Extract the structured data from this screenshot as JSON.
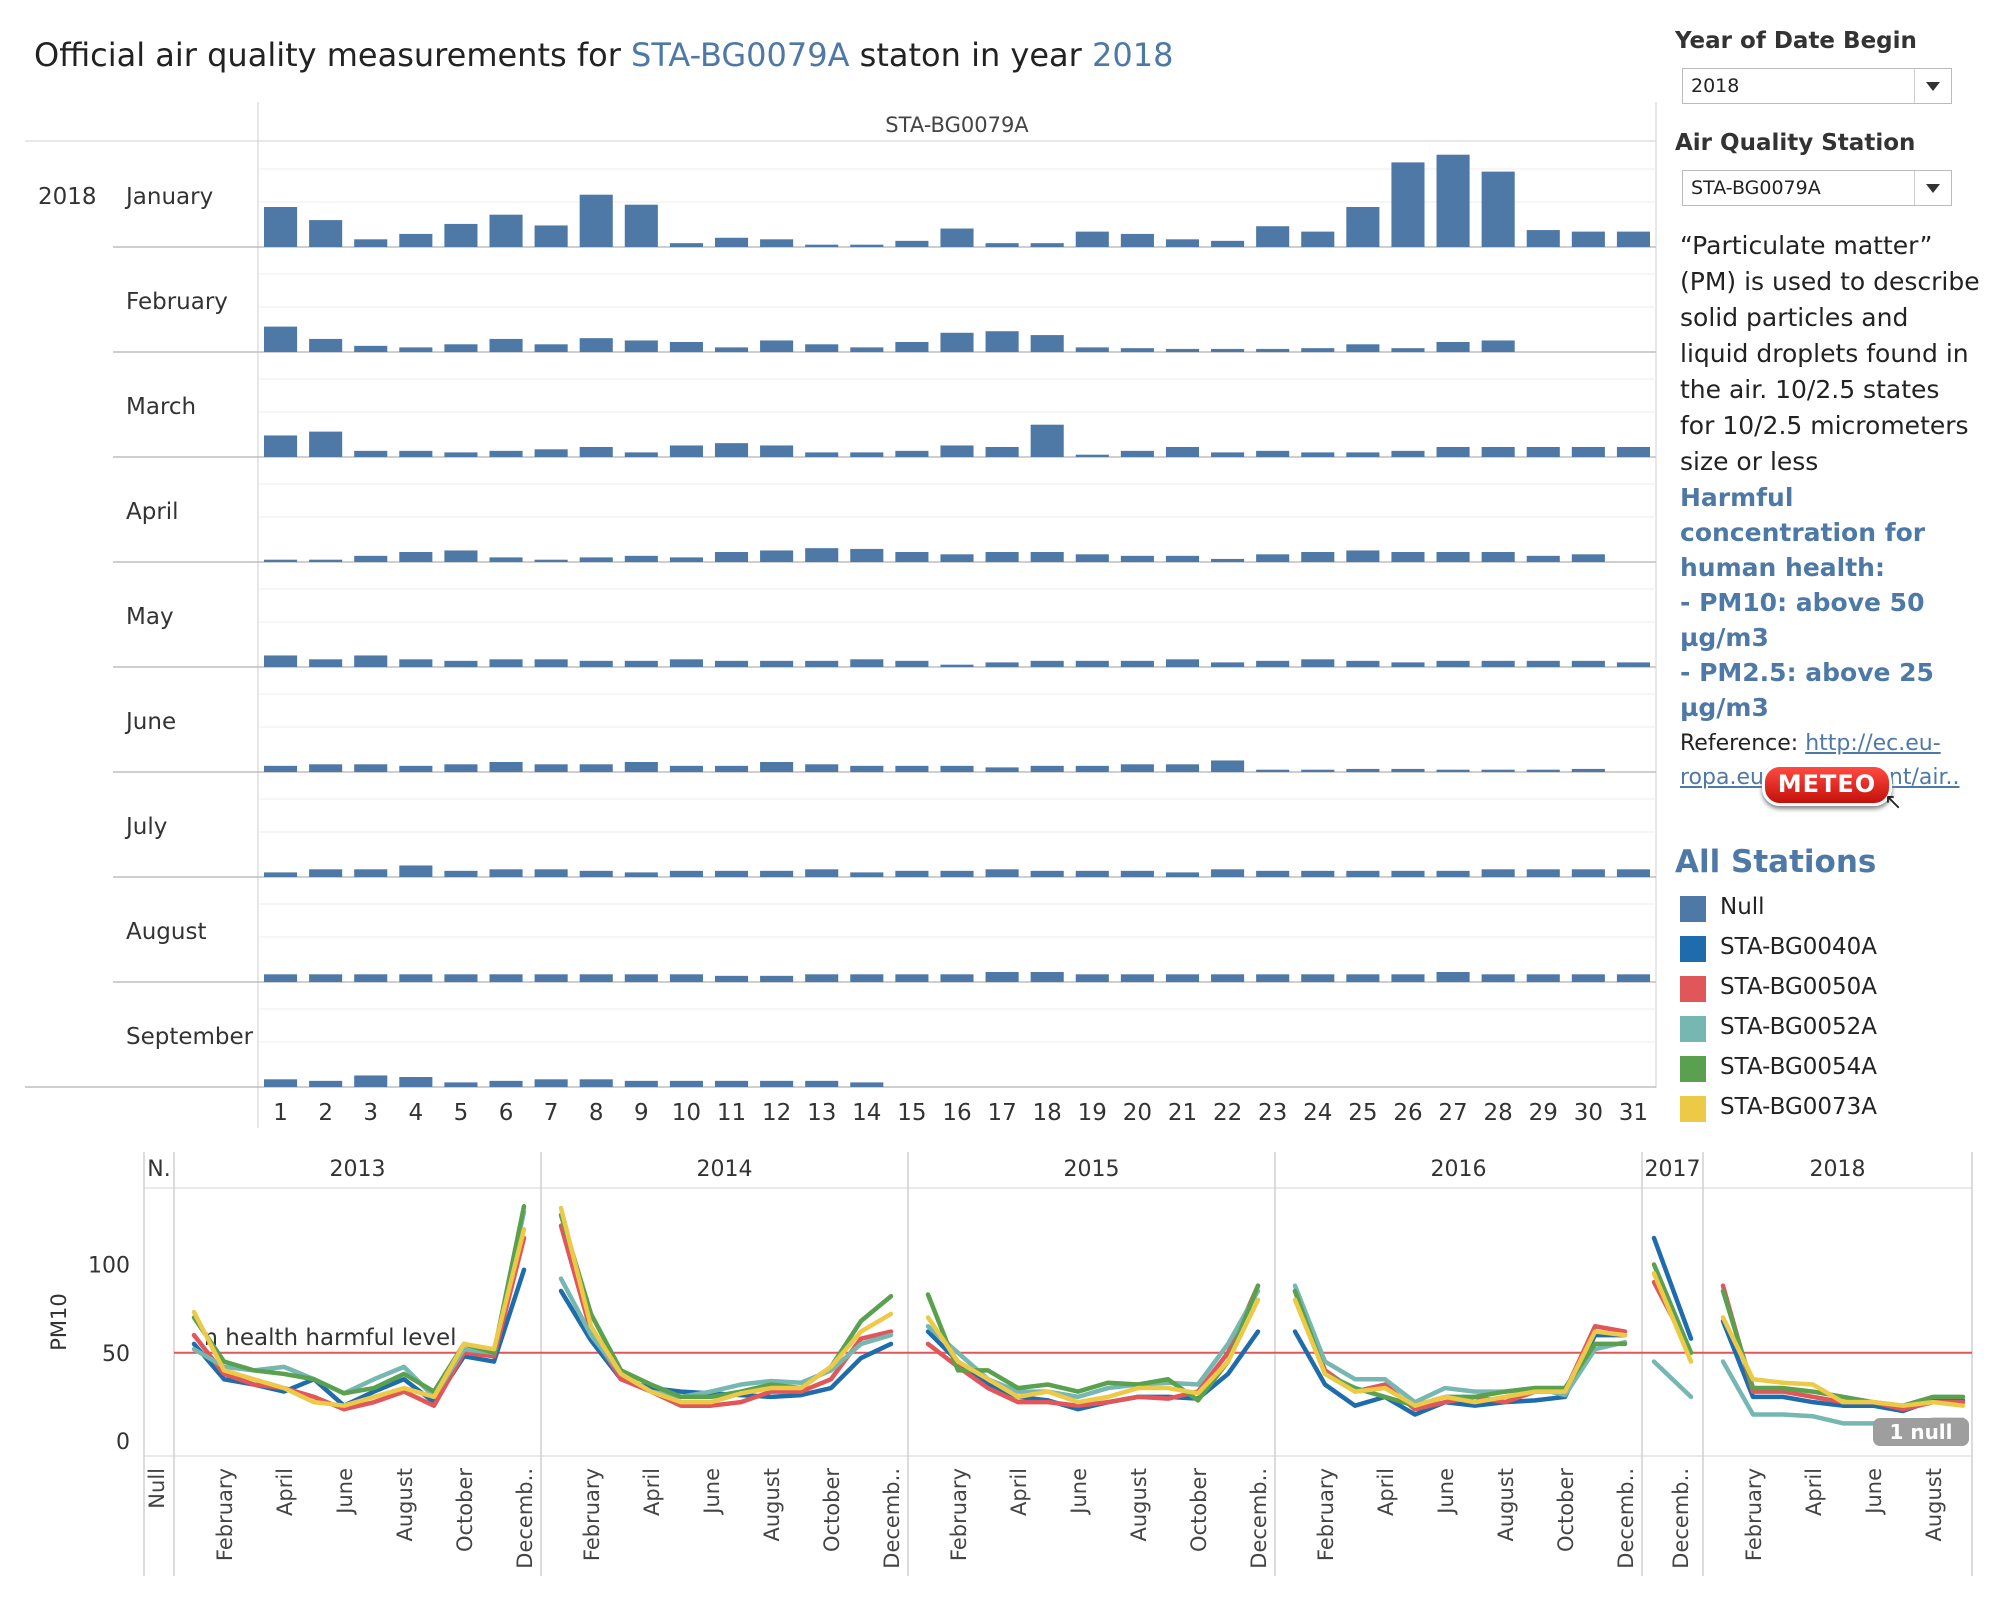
{
  "title": {
    "prefix": "Official air quality measurements for ",
    "station": "STA-BG0079A",
    "middle": " staton in year ",
    "year": "2018"
  },
  "controls": {
    "year_label": "Year of Date Begin",
    "year_value": "2018",
    "station_label": "Air Quality Station",
    "station_value": "STA-BG0079A"
  },
  "description": {
    "text": "“Particulate matter” (PM) is used to describe solid particles and liquid droplets found in the air. 10/2.5 states for 10/2.5 micrometers size or less",
    "harmful_title": "Harmful concentration for human health:",
    "harmful_pm10": "- PM10: above 50 µg/m3",
    "harmful_pm25": "- PM2.5: above 25 µg/m3",
    "reference_label": "Reference: ",
    "reference_link": "http://ec.eu-ropa.eu/environment/air.."
  },
  "meteo_button": "METEO",
  "legend": {
    "title": "All Stations",
    "items": [
      {
        "label": "Null",
        "color": "#4e79a7"
      },
      {
        "label": "STA-BG0040A",
        "color": "#1f6cad"
      },
      {
        "label": "STA-BG0050A",
        "color": "#e15759"
      },
      {
        "label": "STA-BG0052A",
        "color": "#76b7b2"
      },
      {
        "label": "STA-BG0054A",
        "color": "#59a14f"
      },
      {
        "label": "STA-BG0073A",
        "color": "#edc948"
      }
    ]
  },
  "chart_data": [
    {
      "type": "bar",
      "column_header": "STA-BG0079A",
      "row_year": "2018",
      "bar_color": "#4e79a7",
      "days": [
        "1",
        "2",
        "3",
        "4",
        "5",
        "6",
        "7",
        "8",
        "9",
        "10",
        "11",
        "12",
        "13",
        "14",
        "15",
        "16",
        "17",
        "18",
        "19",
        "20",
        "21",
        "22",
        "23",
        "24",
        "25",
        "26",
        "27",
        "28",
        "29",
        "30",
        "31"
      ],
      "ylim": [
        0,
        130
      ],
      "months": [
        {
          "name": "January",
          "values": [
            52,
            35,
            10,
            17,
            30,
            42,
            28,
            68,
            55,
            5,
            12,
            10,
            3,
            3,
            8,
            24,
            5,
            5,
            20,
            17,
            10,
            8,
            27,
            20,
            52,
            110,
            120,
            98,
            22,
            20,
            20
          ]
        },
        {
          "name": "February",
          "values": [
            33,
            17,
            8,
            6,
            10,
            17,
            10,
            18,
            15,
            13,
            6,
            15,
            10,
            6,
            13,
            25,
            27,
            22,
            6,
            5,
            4,
            4,
            4,
            5,
            10,
            5,
            13,
            15
          ]
        },
        {
          "name": "March",
          "values": [
            28,
            33,
            8,
            8,
            6,
            8,
            10,
            13,
            6,
            15,
            18,
            15,
            6,
            6,
            8,
            15,
            13,
            42,
            3,
            8,
            13,
            6,
            8,
            6,
            6,
            8,
            13,
            13,
            13,
            13,
            13
          ]
        },
        {
          "name": "April",
          "values": [
            3,
            3,
            8,
            13,
            15,
            6,
            3,
            6,
            8,
            6,
            13,
            15,
            18,
            17,
            13,
            10,
            13,
            13,
            10,
            8,
            8,
            4,
            10,
            13,
            15,
            13,
            13,
            13,
            8,
            10
          ]
        },
        {
          "name": "May",
          "values": [
            15,
            10,
            15,
            10,
            8,
            10,
            10,
            8,
            8,
            10,
            8,
            8,
            8,
            10,
            8,
            3,
            6,
            8,
            8,
            8,
            10,
            6,
            8,
            10,
            8,
            6,
            8,
            8,
            8,
            8,
            6
          ]
        },
        {
          "name": "June",
          "values": [
            8,
            10,
            10,
            8,
            10,
            13,
            10,
            10,
            13,
            8,
            8,
            13,
            10,
            8,
            8,
            8,
            6,
            8,
            8,
            10,
            10,
            15,
            3,
            3,
            4,
            4,
            3,
            3,
            3,
            4
          ]
        },
        {
          "name": "July",
          "values": [
            6,
            10,
            10,
            15,
            8,
            10,
            10,
            8,
            6,
            8,
            8,
            8,
            10,
            6,
            8,
            8,
            10,
            8,
            8,
            8,
            6,
            10,
            8,
            8,
            8,
            8,
            8,
            10,
            10,
            10,
            10
          ]
        },
        {
          "name": "August",
          "values": [
            10,
            10,
            10,
            10,
            10,
            10,
            10,
            10,
            10,
            10,
            8,
            8,
            10,
            10,
            10,
            10,
            13,
            13,
            10,
            10,
            10,
            10,
            10,
            10,
            10,
            10,
            13,
            10,
            10,
            10,
            10
          ]
        },
        {
          "name": "September",
          "values": [
            10,
            8,
            15,
            13,
            6,
            8,
            10,
            10,
            8,
            8,
            8,
            8,
            8,
            6
          ]
        }
      ]
    },
    {
      "type": "line",
      "ylabel": "PM10",
      "yticks": [
        0,
        50,
        100
      ],
      "ylim": [
        -8,
        140
      ],
      "reference_line": {
        "value": 50,
        "label": "Human health harmful level",
        "color": "#e15759"
      },
      "null_badge": "1 null",
      "panels": [
        {
          "year": "Null",
          "header": "N.",
          "ticks": [
            "Null"
          ]
        },
        {
          "year": "2013",
          "header": "2013",
          "months": 12,
          "ticks": [
            "February",
            "April",
            "June",
            "August",
            "October",
            "Decemb.."
          ]
        },
        {
          "year": "2014",
          "header": "2014",
          "months": 12,
          "ticks": [
            "February",
            "April",
            "June",
            "August",
            "October",
            "Decemb.."
          ]
        },
        {
          "year": "2015",
          "header": "2015",
          "months": 12,
          "ticks": [
            "February",
            "April",
            "June",
            "August",
            "October",
            "Decemb.."
          ]
        },
        {
          "year": "2016",
          "header": "2016",
          "months": 12,
          "ticks": [
            "February",
            "April",
            "June",
            "August",
            "October",
            "Decemb.."
          ]
        },
        {
          "year": "2017",
          "header": "2017",
          "months": 2,
          "ticks": [
            "Decemb.."
          ]
        },
        {
          "year": "2018",
          "header": "2018",
          "months": 9,
          "ticks": [
            "February",
            "April",
            "June",
            "August"
          ]
        }
      ],
      "series": [
        {
          "name": "STA-BG0040A",
          "color": "#1f6cad",
          "2013": [
            55,
            35,
            32,
            28,
            35,
            20,
            28,
            35,
            22,
            48,
            45,
            97
          ],
          "2014": [
            85,
            57,
            35,
            30,
            28,
            27,
            26,
            25,
            26,
            30,
            47,
            55
          ],
          "2015": [
            62,
            45,
            32,
            25,
            23,
            18,
            22,
            25,
            25,
            24,
            38,
            62
          ],
          "2016": [
            62,
            32,
            20,
            25,
            15,
            22,
            20,
            22,
            23,
            25,
            60,
            60
          ],
          "2017": [
            115,
            58
          ],
          "2018": [
            68,
            25,
            25,
            22,
            20,
            20,
            17,
            23,
            23
          ]
        },
        {
          "name": "STA-BG0050A",
          "color": "#e15759",
          "2013": [
            60,
            38,
            32,
            30,
            25,
            18,
            22,
            28,
            20,
            50,
            48,
            115
          ],
          "2014": [
            122,
            62,
            35,
            28,
            20,
            20,
            22,
            28,
            28,
            35,
            58,
            62
          ],
          "2015": [
            55,
            42,
            30,
            22,
            22,
            20,
            22,
            25,
            24,
            28,
            50,
            88
          ],
          "2016": [
            85,
            40,
            28,
            32,
            18,
            22,
            25,
            22,
            28,
            28,
            65,
            62
          ],
          "2017": [
            90,
            50
          ],
          "2018": [
            88,
            28,
            28,
            25,
            22,
            22,
            18,
            22,
            22
          ]
        },
        {
          "name": "STA-BG0052A",
          "color": "#76b7b2",
          "2013": [
            52,
            42,
            40,
            42,
            35,
            27,
            35,
            42,
            25,
            52,
            50,
            130
          ],
          "2014": [
            92,
            60,
            38,
            28,
            25,
            28,
            32,
            34,
            33,
            40,
            55,
            60
          ],
          "2015": [
            65,
            50,
            35,
            28,
            28,
            25,
            30,
            32,
            33,
            32,
            55,
            85
          ],
          "2016": [
            88,
            45,
            35,
            35,
            22,
            30,
            28,
            28,
            30,
            26,
            52,
            56
          ],
          "2017": [
            45,
            25
          ],
          "2018": [
            45,
            15,
            15,
            14,
            10,
            10,
            10,
            12,
            12
          ]
        },
        {
          "name": "STA-BG0054A",
          "color": "#59a14f",
          "2013": [
            70,
            45,
            40,
            38,
            35,
            27,
            30,
            38,
            28,
            55,
            50,
            133
          ],
          "2014": [
            128,
            72,
            40,
            32,
            25,
            25,
            28,
            32,
            30,
            42,
            68,
            82
          ],
          "2015": [
            83,
            40,
            40,
            30,
            32,
            28,
            33,
            32,
            35,
            23,
            45,
            88
          ],
          "2016": [
            85,
            38,
            30,
            25,
            20,
            25,
            25,
            28,
            30,
            30,
            55,
            55
          ],
          "2017": [
            100,
            50
          ],
          "2018": [
            85,
            30,
            30,
            28,
            25,
            22,
            20,
            25,
            25
          ]
        },
        {
          "name": "STA-BG0073A",
          "color": "#edc948",
          "2013": [
            73,
            40,
            35,
            30,
            22,
            20,
            25,
            30,
            25,
            55,
            52,
            120
          ],
          "2014": [
            132,
            65,
            38,
            28,
            22,
            22,
            27,
            30,
            30,
            42,
            62,
            72
          ],
          "2015": [
            70,
            45,
            35,
            25,
            28,
            22,
            25,
            30,
            30,
            27,
            45,
            80
          ],
          "2016": [
            80,
            38,
            28,
            30,
            20,
            25,
            22,
            25,
            28,
            28,
            62,
            60
          ],
          "2017": [
            95,
            45
          ],
          "2018": [
            70,
            35,
            33,
            32,
            22,
            22,
            20,
            22,
            20
          ]
        }
      ]
    }
  ]
}
